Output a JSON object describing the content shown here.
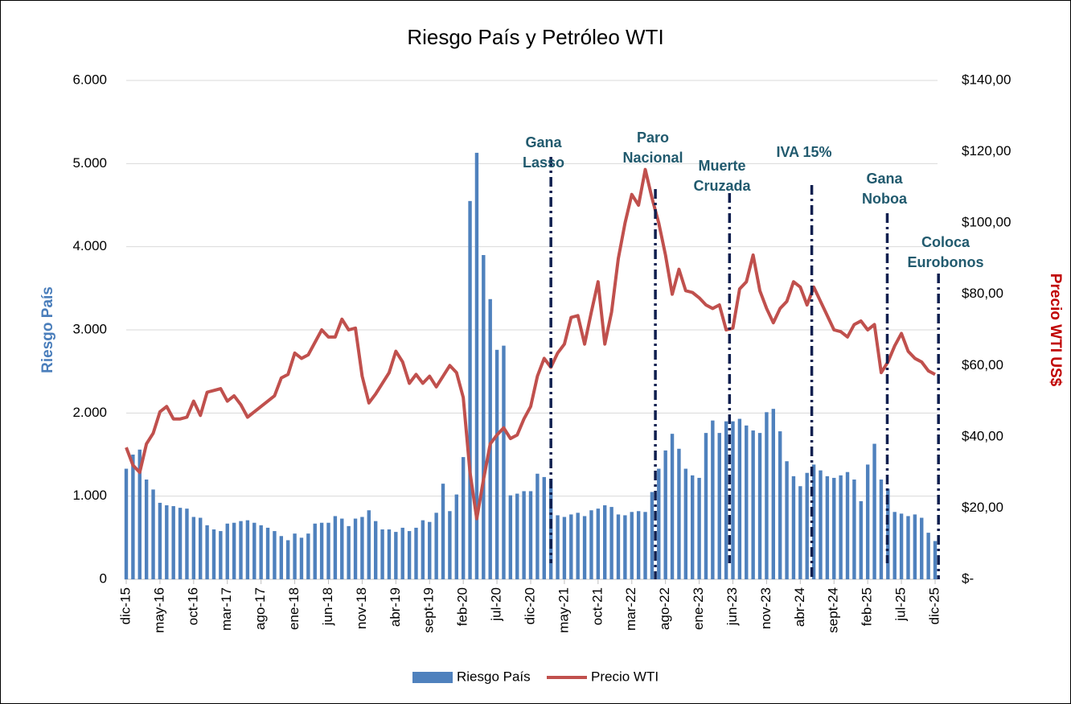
{
  "chart_data": {
    "type": "bar-line",
    "title": "Riesgo País y Petróleo WTI",
    "ylabel": "Riesgo País",
    "y2label": "Precio WTI US$",
    "categories": [
      "dic-15",
      null,
      null,
      null,
      null,
      "may-16",
      null,
      null,
      null,
      null,
      "oct-16",
      null,
      null,
      null,
      null,
      "mar-17",
      null,
      null,
      null,
      null,
      "ago-17",
      null,
      null,
      null,
      null,
      "ene-18",
      null,
      null,
      null,
      null,
      "jun-18",
      null,
      null,
      null,
      null,
      "nov-18",
      null,
      null,
      null,
      null,
      "abr-19",
      null,
      null,
      null,
      null,
      "sept-19",
      null,
      null,
      null,
      null,
      "feb-20",
      null,
      null,
      null,
      null,
      "jul-20",
      null,
      null,
      null,
      null,
      "dic-20",
      null,
      null,
      null,
      null,
      "may-21",
      null,
      null,
      null,
      null,
      "oct-21",
      null,
      null,
      null,
      null,
      "mar-22",
      null,
      null,
      null,
      null,
      "ago-22",
      null,
      null,
      null,
      null,
      "ene-23",
      null,
      null,
      null,
      null,
      "jun-23",
      null,
      null,
      null,
      null,
      "nov-23",
      null,
      null,
      null,
      null,
      "abr-24",
      null,
      null,
      null,
      null,
      "sept-24",
      null,
      null,
      null,
      null,
      "feb-25",
      null,
      null,
      null,
      null,
      "jul-25",
      null,
      null,
      null,
      null,
      "dic-25"
    ],
    "series": [
      {
        "name": "Riesgo País",
        "type": "bar",
        "color": "#4f81bd",
        "axis": "y",
        "values": [
          1330,
          1500,
          1560,
          1200,
          1080,
          920,
          890,
          880,
          860,
          850,
          750,
          740,
          650,
          600,
          580,
          670,
          680,
          700,
          710,
          680,
          650,
          620,
          580,
          520,
          470,
          550,
          500,
          550,
          670,
          680,
          680,
          760,
          730,
          640,
          730,
          750,
          830,
          700,
          600,
          600,
          570,
          620,
          580,
          620,
          710,
          690,
          800,
          1150,
          820,
          1020,
          1470,
          4550,
          5130,
          3900,
          3370,
          2760,
          2810,
          1010,
          1030,
          1060,
          1060,
          1270,
          1230,
          1210,
          770,
          750,
          780,
          800,
          760,
          830,
          850,
          890,
          870,
          780,
          770,
          810,
          820,
          810,
          1050,
          1330,
          1550,
          1750,
          1570,
          1330,
          1250,
          1220,
          1760,
          1910,
          1760,
          1900,
          1900,
          1930,
          1850,
          1790,
          1760,
          2010,
          2050,
          1780,
          1420,
          1240,
          1120,
          1280,
          1380,
          1310,
          1240,
          1220,
          1250,
          1290,
          1200,
          940,
          1380,
          1630,
          1200,
          1090,
          810,
          790,
          760,
          780,
          740,
          560,
          460
        ]
      },
      {
        "name": "Precio WTI",
        "type": "line",
        "color": "#c0504d",
        "axis": "y2",
        "values": [
          37,
          32,
          30,
          38,
          41,
          47,
          48.5,
          45,
          45,
          45.5,
          50,
          46,
          52.5,
          53,
          53.5,
          50,
          51.5,
          49,
          45.5,
          47,
          48.5,
          50,
          51.5,
          56.5,
          57.5,
          63.5,
          62,
          63,
          66.5,
          70,
          68,
          68,
          73,
          70,
          70.5,
          57,
          49.5,
          52,
          55,
          58,
          64,
          61,
          55,
          57.5,
          55,
          57,
          54,
          57,
          60,
          58,
          51,
          30,
          17,
          28,
          38,
          40.5,
          42.5,
          39.5,
          40.5,
          45,
          48.5,
          57,
          62,
          59.5,
          63.5,
          66,
          73.5,
          74,
          66,
          75,
          83.5,
          66,
          75,
          90,
          100,
          108,
          105,
          115,
          107,
          100,
          91,
          80,
          87,
          81,
          80.5,
          79,
          77,
          76,
          77,
          70,
          70.5,
          81.5,
          83.5,
          91,
          81,
          76,
          72,
          76,
          78,
          83.5,
          82,
          77,
          82,
          78,
          74,
          70,
          69.5,
          68,
          71.5,
          72.5,
          70,
          71.5,
          58,
          61,
          65.5,
          69,
          64,
          62,
          61,
          58.5,
          57.5
        ]
      }
    ],
    "ylim": [
      0,
      6000
    ],
    "yticks": [
      0,
      {
        "value": 1000,
        "label": "1.000"
      },
      {
        "value": 2000,
        "label": "2.000"
      },
      {
        "value": 3000,
        "label": "3.000"
      },
      {
        "value": 4000,
        "label": "4.000"
      },
      {
        "value": 5000,
        "label": "5.000"
      },
      {
        "value": 6000,
        "label": "6.000"
      }
    ],
    "y2lim": [
      0,
      140
    ],
    "y2ticks": [
      {
        "value": 0,
        "label": "$-"
      },
      {
        "value": 20,
        "label": "$20,00"
      },
      {
        "value": 40,
        "label": "$40,00"
      },
      {
        "value": 60,
        "label": "$60,00"
      },
      {
        "value": 80,
        "label": "$80,00"
      },
      {
        "value": 100,
        "label": "$100,00"
      },
      {
        "value": 120,
        "label": "$120,00"
      },
      {
        "value": 140,
        "label": "$140,00"
      }
    ],
    "grid": true,
    "legend": "bottom",
    "annotations": [
      {
        "text": [
          "Gana",
          "Lasso"
        ]
      },
      {
        "text": [
          "Paro",
          "Nacional"
        ]
      },
      {
        "text": [
          "Muerte",
          "Cruzada"
        ]
      },
      {
        "text": [
          "IVA 15%"
        ]
      },
      {
        "text": [
          "Gana",
          "Noboa"
        ]
      },
      {
        "text": [
          "Coloca",
          "Eurobonos"
        ]
      }
    ]
  }
}
